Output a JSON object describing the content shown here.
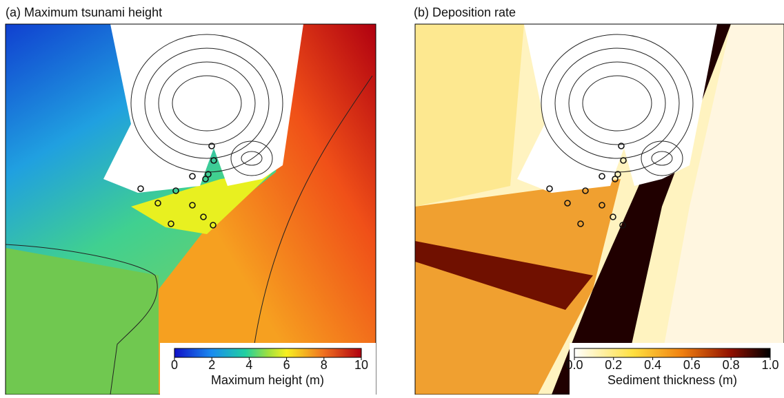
{
  "panels": [
    {
      "title": "(a) Maximum tsunami height",
      "colorbar": {
        "label": "Maximum height (m)",
        "lim": [
          0,
          10
        ],
        "ticks": [
          0,
          2,
          4,
          6,
          8,
          10
        ]
      }
    },
    {
      "title": "(b) Deposition rate",
      "colorbar": {
        "label": "Sediment thickness (m)",
        "lim": [
          0,
          1
        ],
        "ticks": [
          {
            "value": 0,
            "label": "0.0"
          },
          {
            "value": 0.2,
            "label": "0.2"
          },
          {
            "value": 0.4,
            "label": "0.4"
          },
          {
            "value": 0.6,
            "label": "0.6"
          },
          {
            "value": 0.8,
            "label": "0.8"
          },
          {
            "value": 1,
            "label": "1.0"
          }
        ]
      }
    }
  ]
}
